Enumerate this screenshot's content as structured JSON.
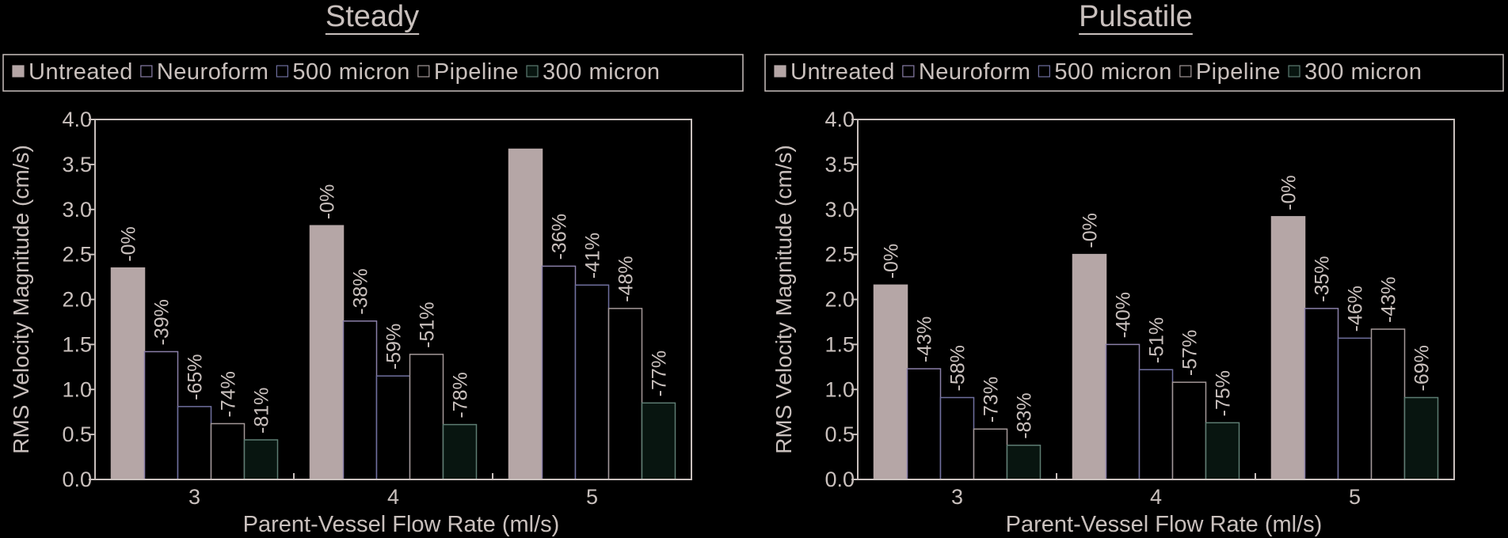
{
  "colors": {
    "background": "#000000",
    "text": "#c9c0bd",
    "axis": "#c9c0bd",
    "untreated": "#b5a6a6",
    "neuroform": "#000000",
    "neuroform_edge": "#8a7fa8",
    "micron500": "#000000",
    "micron500_edge": "#6f6f9e",
    "pipeline": "#000000",
    "pipeline_edge": "#a49898",
    "micron300": "#081510",
    "micron300_edge": "#5d7c72"
  },
  "chart_data": [
    {
      "type": "bar",
      "title": "Steady",
      "xlabel": "Parent-Vessel Flow Rate (ml/s)",
      "ylabel": "RMS Velocity Magnitude (cm/s)",
      "ylim": [
        0,
        4.0
      ],
      "yticks": [
        "0.0",
        "0.5",
        "1.0",
        "1.5",
        "2.0",
        "2.5",
        "3.0",
        "3.5",
        "4.0"
      ],
      "categories": [
        "3",
        "4",
        "5"
      ],
      "legend_position": "top",
      "series": [
        {
          "name": "Untreated",
          "values": [
            2.35,
            2.82,
            3.67
          ],
          "labels": [
            "-0%",
            "-0%",
            ""
          ]
        },
        {
          "name": "Neuroform",
          "values": [
            1.42,
            1.76,
            2.37
          ],
          "labels": [
            "-39%",
            "-38%",
            "-36%"
          ]
        },
        {
          "name": "500 micron",
          "values": [
            0.81,
            1.15,
            2.16
          ],
          "labels": [
            "-65%",
            "-59%",
            "-41%"
          ]
        },
        {
          "name": "Pipeline",
          "values": [
            0.62,
            1.39,
            1.9
          ],
          "labels": [
            "-74%",
            "-51%",
            "-48%"
          ]
        },
        {
          "name": "300 micron",
          "values": [
            0.44,
            0.61,
            0.85
          ],
          "labels": [
            "-81%",
            "-78%",
            "-77%"
          ]
        }
      ]
    },
    {
      "type": "bar",
      "title": "Pulsatile",
      "xlabel": "Parent-Vessel Flow Rate (ml/s)",
      "ylabel": "RMS Velocity Magnitude (cm/s)",
      "ylim": [
        0,
        4.0
      ],
      "yticks": [
        "0.0",
        "0.5",
        "1.0",
        "1.5",
        "2.0",
        "2.5",
        "3.0",
        "3.5",
        "4.0"
      ],
      "categories": [
        "3",
        "4",
        "5"
      ],
      "legend_position": "top",
      "series": [
        {
          "name": "Untreated",
          "values": [
            2.16,
            2.5,
            2.92
          ],
          "labels": [
            "-0%",
            "-0%",
            "-0%"
          ]
        },
        {
          "name": "Neuroform",
          "values": [
            1.23,
            1.5,
            1.9
          ],
          "labels": [
            "-43%",
            "-40%",
            "-35%"
          ]
        },
        {
          "name": "500 micron",
          "values": [
            0.91,
            1.22,
            1.57
          ],
          "labels": [
            "-58%",
            "-51%",
            "-46%"
          ]
        },
        {
          "name": "Pipeline",
          "values": [
            0.56,
            1.08,
            1.67
          ],
          "labels": [
            "-73%",
            "-57%",
            "-43%"
          ]
        },
        {
          "name": "300 micron",
          "values": [
            0.38,
            0.63,
            0.91
          ],
          "labels": [
            "-83%",
            "-75%",
            "-69%"
          ]
        }
      ]
    }
  ]
}
